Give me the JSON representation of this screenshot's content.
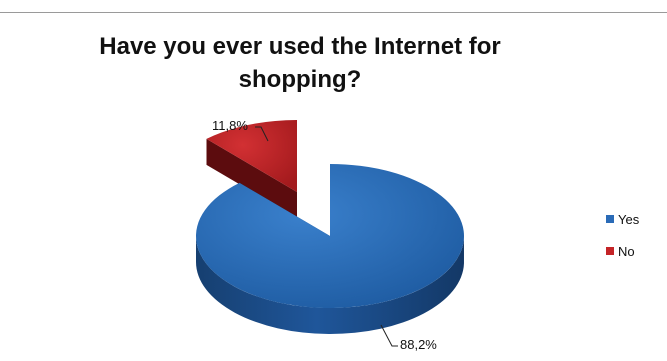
{
  "chart_data": {
    "type": "pie",
    "title": "Have you ever used the Internet for shopping?",
    "slices": [
      {
        "label": "Yes",
        "value": 88.2,
        "display": "88,2%",
        "color": "#2A6BB7"
      },
      {
        "label": "No",
        "value": 11.8,
        "display": "11,8%",
        "color": "#C42427"
      }
    ],
    "legend_position": "right",
    "three_d": true,
    "exploded_slice": "No"
  }
}
